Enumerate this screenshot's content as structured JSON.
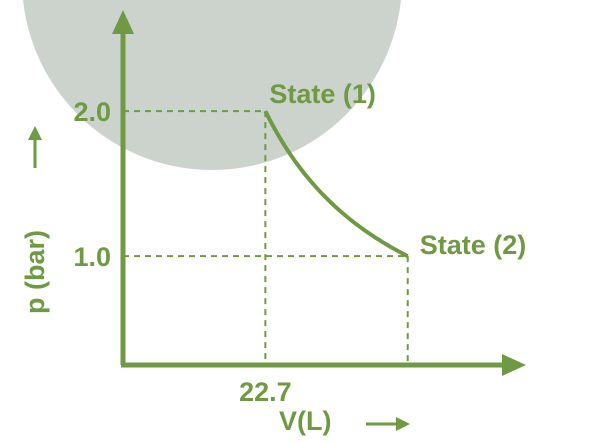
{
  "chart_data": {
    "type": "line",
    "title": "",
    "xlabel": "V(L)",
    "ylabel": "p (bar)",
    "y_ticks": [
      {
        "value": 2.0,
        "label": "2.0"
      },
      {
        "value": 1.0,
        "label": "1.0"
      }
    ],
    "x_ticks": [
      {
        "value": 22.7,
        "label": "22.7"
      }
    ],
    "xlim": [
      0,
      70
    ],
    "ylim": [
      0.25,
      2.6
    ],
    "series": [
      {
        "x": [
          22.7,
          25.2,
          28.4,
          32.4,
          37.8,
          45.4
        ],
        "y": [
          2.0,
          1.8,
          1.6,
          1.4,
          1.2,
          1.0
        ]
      }
    ],
    "points": [
      {
        "label": "State (1)",
        "x": 22.7,
        "y": 2.0
      },
      {
        "label": "State (2)",
        "x": 45.4,
        "y": 1.0
      }
    ],
    "grid": false,
    "legend": "none"
  },
  "colors": {
    "axis": "#6f9a43",
    "curve": "#6f9a43",
    "text": "#6f9a43",
    "watermark": "#c6cec8"
  }
}
